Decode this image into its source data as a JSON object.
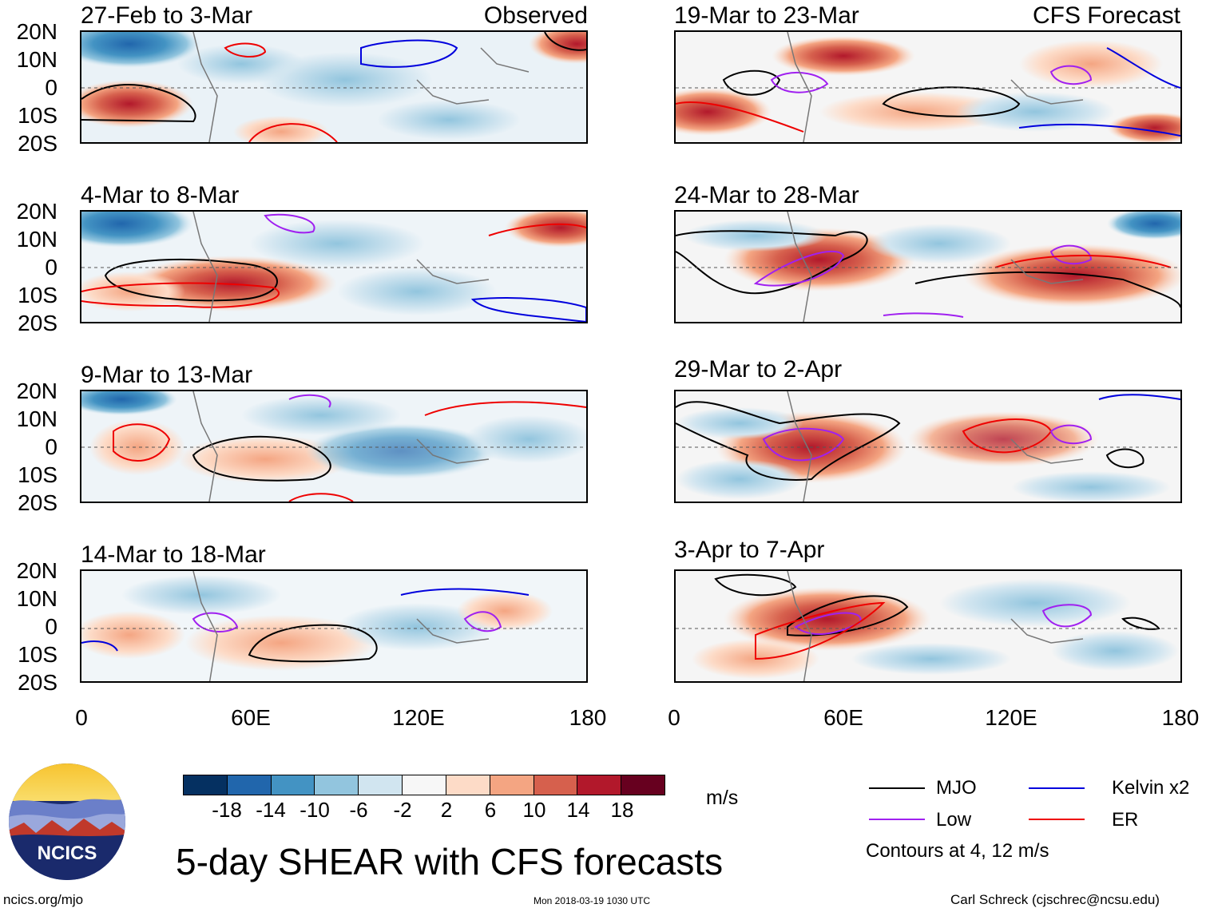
{
  "latitude_labels": [
    "20N",
    "10N",
    "0",
    "10S",
    "20S"
  ],
  "longitude_labels": [
    "0",
    "60E",
    "120E",
    "180"
  ],
  "headers": {
    "left": "Observed",
    "right": "CFS Forecast"
  },
  "panels_left": [
    {
      "title": "27-Feb to 3-Mar"
    },
    {
      "title": "4-Mar to 8-Mar"
    },
    {
      "title": "9-Mar to 13-Mar"
    },
    {
      "title": "14-Mar to 18-Mar"
    }
  ],
  "panels_right": [
    {
      "title": "19-Mar to 23-Mar"
    },
    {
      "title": "24-Mar to 28-Mar"
    },
    {
      "title": "29-Mar to 2-Apr"
    },
    {
      "title": "3-Apr to 7-Apr"
    }
  ],
  "colorbar": {
    "unit": "m/s",
    "labels": [
      "-18",
      "-14",
      "-10",
      "-6",
      "-2",
      "2",
      "6",
      "10",
      "14",
      "18"
    ],
    "colors": [
      "#053061",
      "#2166ac",
      "#4393c3",
      "#92c5de",
      "#d1e5f0",
      "#f7f7f7",
      "#fddbc7",
      "#f4a582",
      "#d6604d",
      "#b2182b",
      "#67001f"
    ]
  },
  "legend": {
    "items": [
      {
        "label": "MJO",
        "color": "#000000"
      },
      {
        "label": "Kelvin x2",
        "color": "#0000dd"
      },
      {
        "label": "Low",
        "color": "#a020f0"
      },
      {
        "label": "ER",
        "color": "#ee0000"
      }
    ],
    "note": "Contours at 4, 12 m/s"
  },
  "logo": {
    "text": "NCICS"
  },
  "main_title": "5-day SHEAR with CFS forecasts",
  "footer": {
    "url": "ncics.org/mjo",
    "timestamp": "Mon 2018-03-19 1030 UTC",
    "credit": "Carl Schreck (cjschrec@ncsu.edu)"
  }
}
